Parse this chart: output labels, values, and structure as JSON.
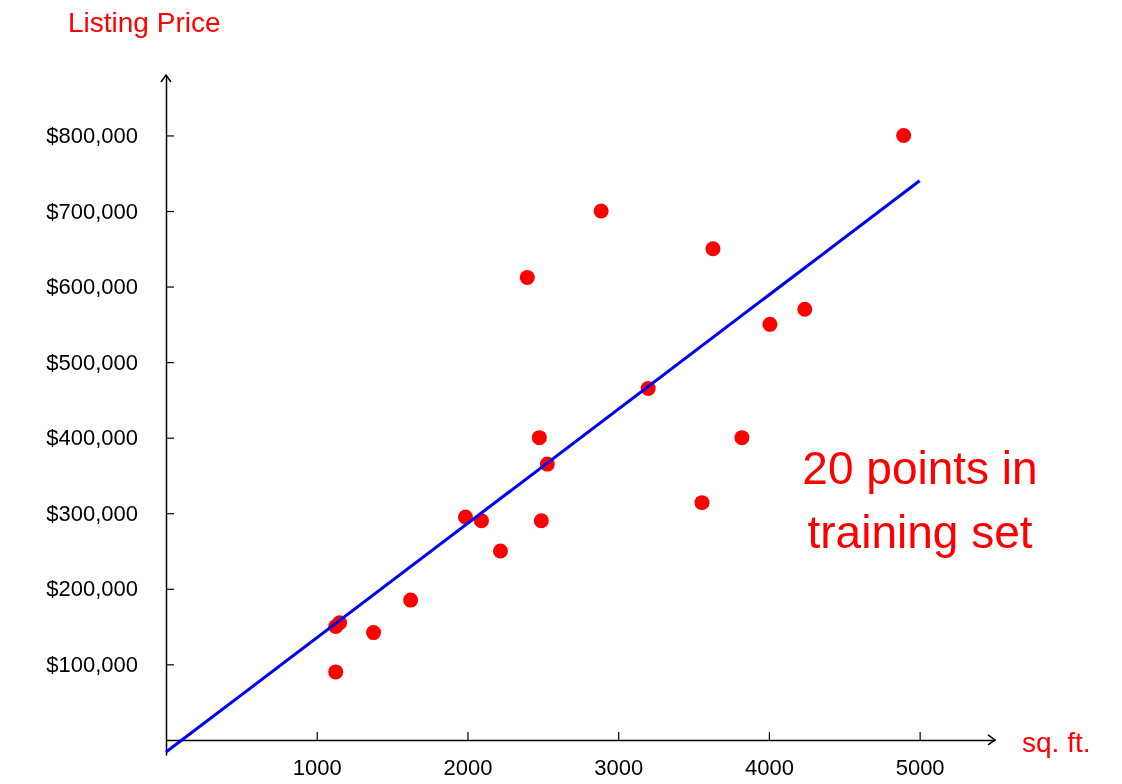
{
  "chart_data": {
    "type": "scatter",
    "xlabel": "sq. ft.",
    "ylabel": "Listing Price",
    "xlim": [
      0,
      5500
    ],
    "ylim": [
      -20000,
      880000
    ],
    "xticks": [
      1000,
      2000,
      3000,
      4000,
      5000
    ],
    "yticks": [
      {
        "value": 100000,
        "label": "$100,000"
      },
      {
        "value": 200000,
        "label": "$200,000"
      },
      {
        "value": 300000,
        "label": "$300,000"
      },
      {
        "value": 400000,
        "label": "$400,000"
      },
      {
        "value": 500000,
        "label": "$500,000"
      },
      {
        "value": 600000,
        "label": "$600,000"
      },
      {
        "value": 700000,
        "label": "$700,000"
      },
      {
        "value": 800000,
        "label": "$800,000"
      }
    ],
    "grid": false,
    "annotations": [
      "20 points in\ntraining set"
    ],
    "series": [
      {
        "color": "#ff0000",
        "marker": "circle",
        "x": [
          1126,
          1126,
          1152,
          1377,
          1623,
          1987,
          2093,
          2219,
          2397,
          2477,
          2490,
          2530,
          2887,
          3199,
          3556,
          3629,
          3821,
          4007,
          4238,
          4894
        ],
        "values": [
          90000,
          150000,
          155000,
          142000,
          185000,
          295000,
          290000,
          250000,
          612000,
          400000,
          290000,
          365000,
          700000,
          465000,
          314000,
          650000,
          400000,
          550000,
          570000,
          800000
        ]
      },
      {
        "type": "line",
        "color": "#0000ee",
        "line_style": "solid",
        "marker": "none",
        "x": [
          0,
          5000
        ],
        "values": [
          -16000,
          740000
        ]
      }
    ]
  }
}
